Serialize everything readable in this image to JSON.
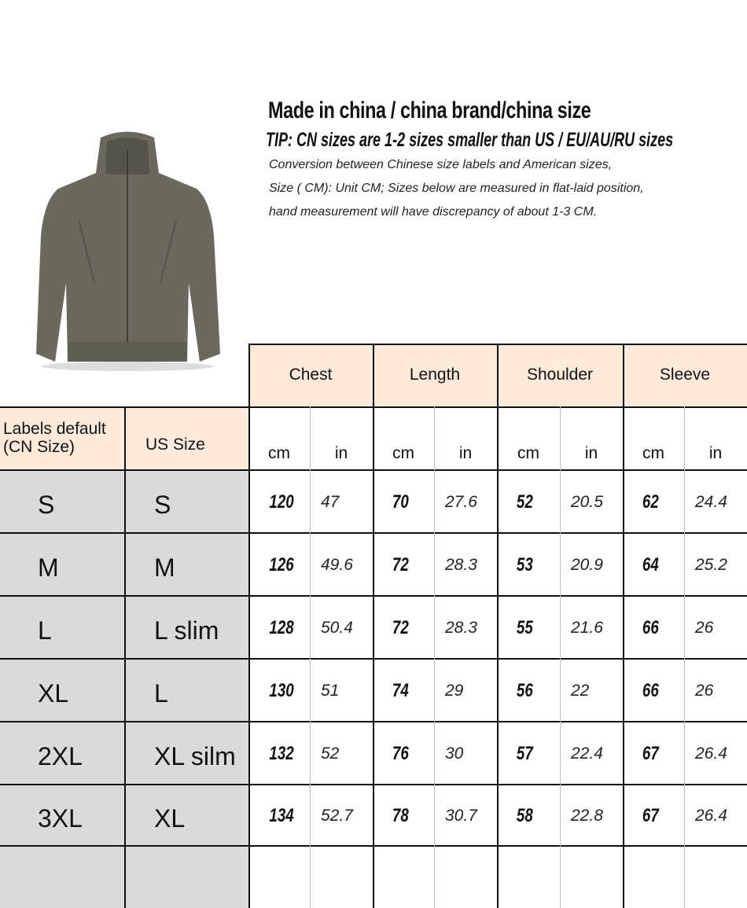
{
  "header": {
    "title": "Made in china / china brand/china size",
    "tip": "TIP: CN sizes are 1-2 sizes smaller than US / EU/AU/RU sizes",
    "notes": [
      "Conversion between Chinese size labels and American sizes,",
      "Size ( CM): Unit CM; Sizes below are measured in flat-laid position,",
      "hand measurement will have discrepancy of about 1-3 CM."
    ]
  },
  "product_image": {
    "icon": "jacket-icon",
    "color": "#6b695d"
  },
  "colors": {
    "header_fill": "#fdeadb",
    "size_fill": "#dcdad8"
  },
  "table": {
    "label_header": "Labels default\n(CN Size)",
    "us_header": "US Size",
    "measures": [
      "Chest",
      "Length",
      "Shoulder",
      "Sleeve"
    ],
    "units": [
      "cm",
      "in"
    ],
    "rows": [
      {
        "cn": "S",
        "us": "S",
        "values": [
          [
            "120",
            "47"
          ],
          [
            "70",
            "27.6"
          ],
          [
            "52",
            "20.5"
          ],
          [
            "62",
            "24.4"
          ]
        ]
      },
      {
        "cn": "M",
        "us": "M",
        "values": [
          [
            "126",
            "49.6"
          ],
          [
            "72",
            "28.3"
          ],
          [
            "53",
            "20.9"
          ],
          [
            "64",
            "25.2"
          ]
        ]
      },
      {
        "cn": "L",
        "us": "L slim",
        "values": [
          [
            "128",
            "50.4"
          ],
          [
            "72",
            "28.3"
          ],
          [
            "55",
            "21.6"
          ],
          [
            "66",
            "26"
          ]
        ]
      },
      {
        "cn": "XL",
        "us": "L",
        "values": [
          [
            "130",
            "51"
          ],
          [
            "74",
            "29"
          ],
          [
            "56",
            "22"
          ],
          [
            "66",
            "26"
          ]
        ]
      },
      {
        "cn": "2XL",
        "us": "XL silm",
        "values": [
          [
            "132",
            "52"
          ],
          [
            "76",
            "30"
          ],
          [
            "57",
            "22.4"
          ],
          [
            "67",
            "26.4"
          ]
        ]
      },
      {
        "cn": "3XL",
        "us": "XL",
        "values": [
          [
            "134",
            "52.7"
          ],
          [
            "78",
            "30.7"
          ],
          [
            "58",
            "22.8"
          ],
          [
            "67",
            "26.4"
          ]
        ]
      }
    ]
  }
}
